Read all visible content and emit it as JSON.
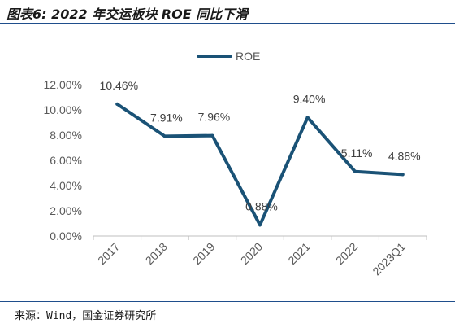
{
  "title": "图表6: 2022 年交运板块 ROE 同比下滑",
  "source": "来源：Wind，国金证券研究所",
  "chart_data": {
    "type": "line",
    "categories": [
      "2017",
      "2018",
      "2019",
      "2020",
      "2021",
      "2022",
      "2023Q1"
    ],
    "series": [
      {
        "name": "ROE",
        "values": [
          10.46,
          7.91,
          7.96,
          0.88,
          9.4,
          5.11,
          4.88
        ],
        "color": "#1a5276"
      }
    ],
    "data_labels": [
      "10.46%",
      "7.91%",
      "7.96%",
      "0.88%",
      "9.40%",
      "5.11%",
      "4.88%"
    ],
    "yticks": [
      "0.00%",
      "2.00%",
      "4.00%",
      "6.00%",
      "8.00%",
      "10.00%",
      "12.00%"
    ],
    "ylim": [
      0,
      12
    ],
    "legend_position": "top-center",
    "grid": false
  }
}
